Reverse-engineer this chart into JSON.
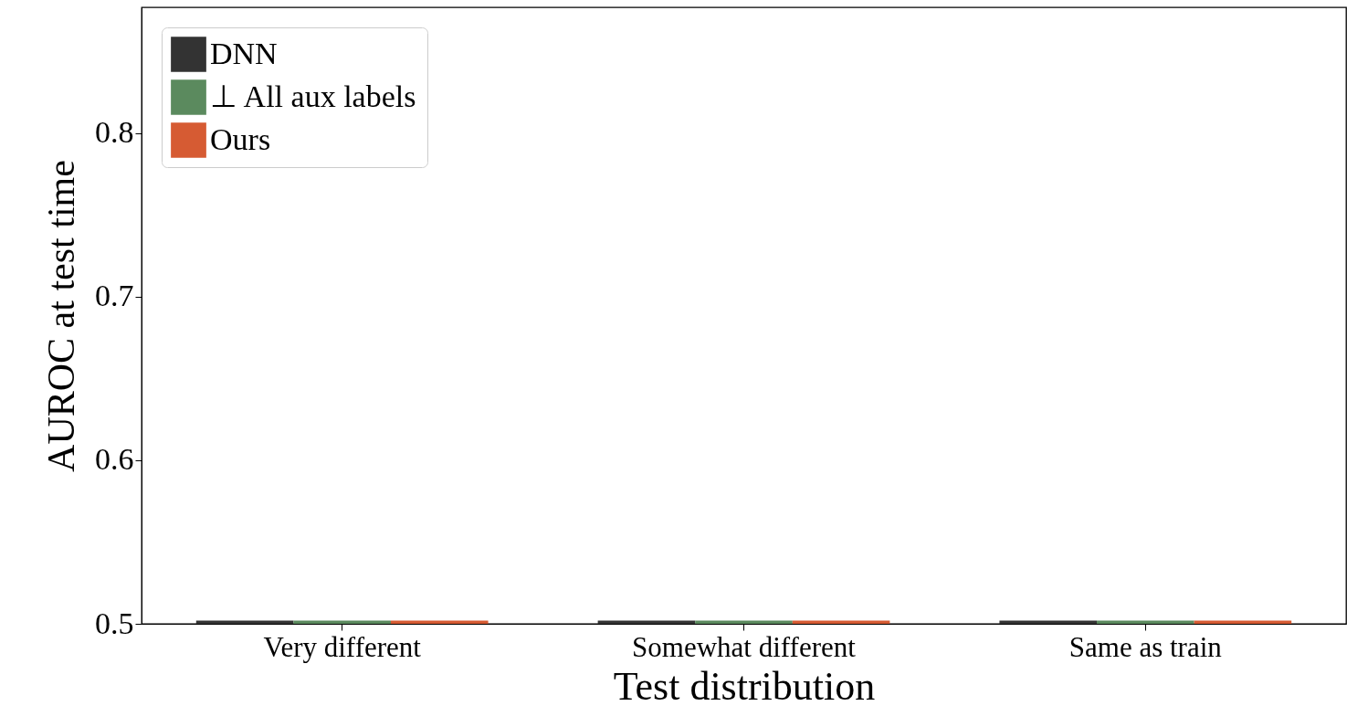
{
  "chart_data": {
    "type": "bar",
    "xlabel": "Test distribution",
    "ylabel": "AUROC at test time",
    "categories": [
      "Very different",
      "Somewhat different",
      "Same as train"
    ],
    "series": [
      {
        "name": "DNN",
        "color": "#333333",
        "values": [
          0.502,
          0.502,
          0.502
        ]
      },
      {
        "name": "⊥ All aux labels",
        "color": "#5b8a5e",
        "values": [
          0.502,
          0.502,
          0.502
        ]
      },
      {
        "name": "Ours",
        "color": "#d65b33",
        "values": [
          0.502,
          0.502,
          0.502
        ]
      }
    ],
    "ylim": [
      0.5,
      0.877
    ],
    "yticks": [
      0.5,
      0.6,
      0.7,
      0.8
    ],
    "grid": false,
    "legend": "top left"
  }
}
